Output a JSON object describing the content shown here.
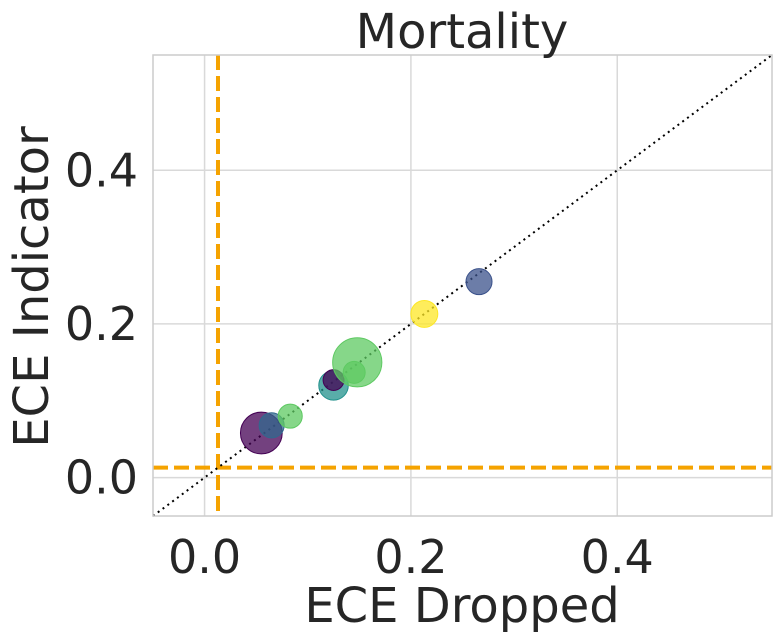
{
  "chart_data": {
    "type": "scatter",
    "title": "Mortality",
    "xlabel": "ECE Dropped",
    "ylabel": "ECE Indicator",
    "xlim": [
      -0.05,
      0.55
    ],
    "ylim": [
      -0.05,
      0.55
    ],
    "xticks": [
      0.0,
      0.2,
      0.4
    ],
    "yticks": [
      0.0,
      0.2,
      0.4
    ],
    "xtick_labels": [
      "0.0",
      "0.2",
      "0.4"
    ],
    "ytick_labels": [
      "0.0",
      "0.2",
      "0.4"
    ],
    "grid": true,
    "reference_line": {
      "style": "dotted",
      "color": "#000000",
      "slope": 1,
      "intercept": 0
    },
    "threshold_lines": {
      "x": 0.013,
      "y": 0.013,
      "color": "#f5a300",
      "style": "dashed"
    },
    "points": [
      {
        "x": 0.055,
        "y": 0.058,
        "size": 3.6,
        "color": "#440154"
      },
      {
        "x": 0.065,
        "y": 0.068,
        "size": 1.3,
        "color": "#31688e"
      },
      {
        "x": 0.083,
        "y": 0.08,
        "size": 1.2,
        "color": "#5ec962"
      },
      {
        "x": 0.125,
        "y": 0.12,
        "size": 1.8,
        "color": "#21918c"
      },
      {
        "x": 0.125,
        "y": 0.127,
        "size": 0.9,
        "color": "#440154"
      },
      {
        "x": 0.145,
        "y": 0.137,
        "size": 1.0,
        "color": "#5ec962"
      },
      {
        "x": 0.148,
        "y": 0.15,
        "size": 5.0,
        "color": "#5ec962"
      },
      {
        "x": 0.213,
        "y": 0.213,
        "size": 1.5,
        "color": "#fde725"
      },
      {
        "x": 0.266,
        "y": 0.255,
        "size": 1.4,
        "color": "#3b528b"
      }
    ]
  }
}
